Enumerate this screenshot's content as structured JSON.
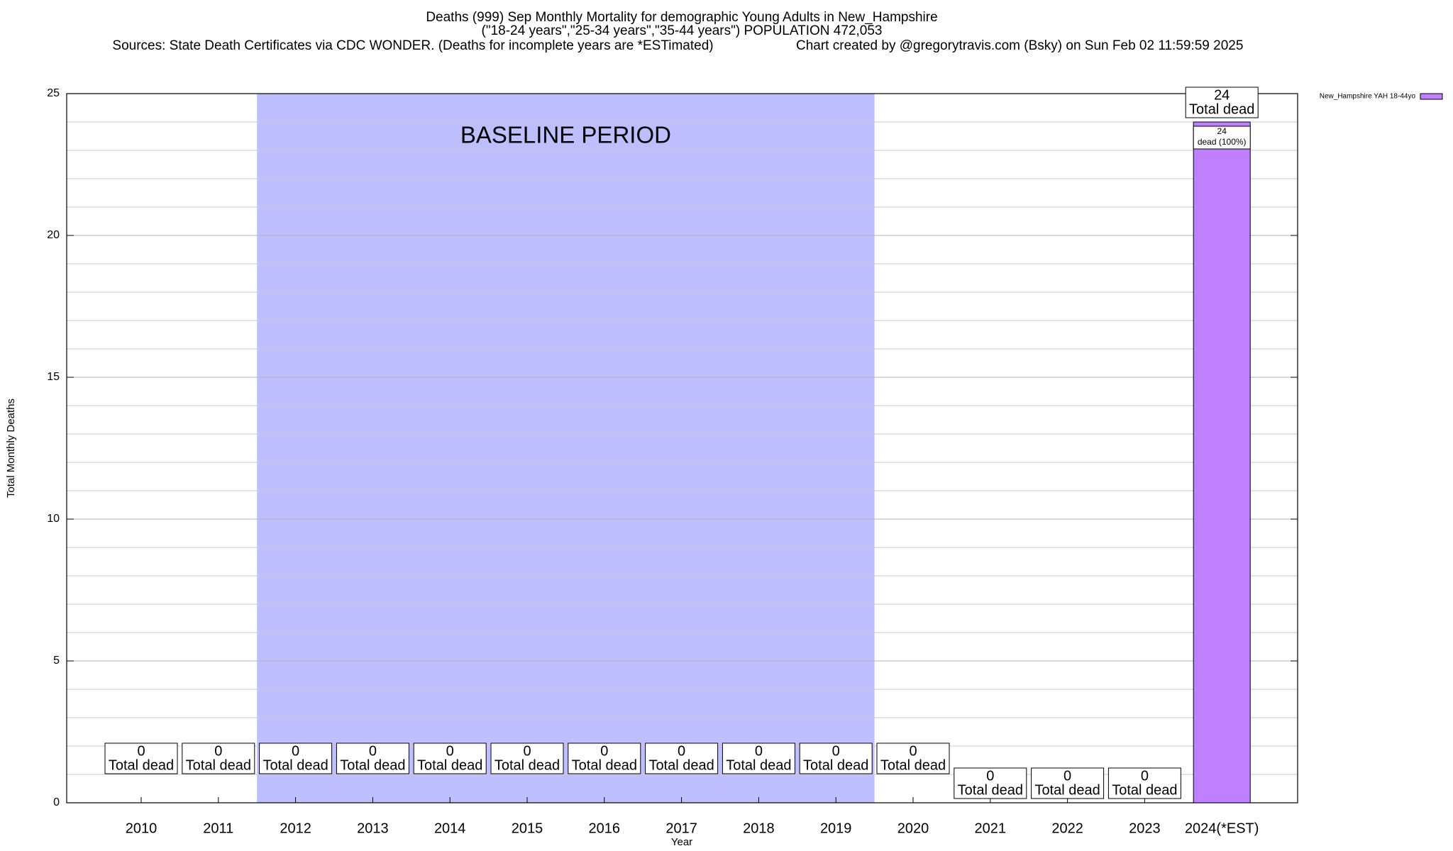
{
  "chart_data": {
    "type": "bar",
    "title": "Deaths (999) Sep Monthly Mortality for demographic Young Adults in New_Hampshire",
    "subtitle": "(\"18-24 years\",\"25-34 years\",\"35-44 years\") POPULATION 472,053",
    "source": "Sources: State Death Certificates via CDC WONDER. (Deaths for incomplete years are *ESTimated)",
    "credit": "Chart created by @gregorytravis.com (Bsky) on Sun Feb 02 11:59:59 2025",
    "x_label": "Year",
    "y_label": "Total Monthly Deaths",
    "categories": [
      "2010",
      "2011",
      "2012",
      "2013",
      "2014",
      "2015",
      "2016",
      "2017",
      "2018",
      "2019",
      "2020",
      "2021",
      "2022",
      "2023",
      "2024(*EST)"
    ],
    "series": [
      {
        "name": "New_Hampshire YAH 18-44yo",
        "color": "#bf80ff",
        "values": [
          0,
          0,
          0,
          0,
          0,
          0,
          0,
          0,
          0,
          0,
          0,
          0,
          0,
          0,
          24
        ]
      }
    ],
    "total_label": "Total dead",
    "segment_label": "dead (100%)",
    "baseline": {
      "label": "BASELINE PERIOD",
      "start": "2012",
      "end": "2019",
      "color": "#bfbfff"
    },
    "ylim": [
      0,
      25
    ],
    "yticks": [
      0,
      5,
      10,
      15,
      20,
      25
    ],
    "grid": true,
    "minor_grid": true,
    "legend": "top-right"
  }
}
